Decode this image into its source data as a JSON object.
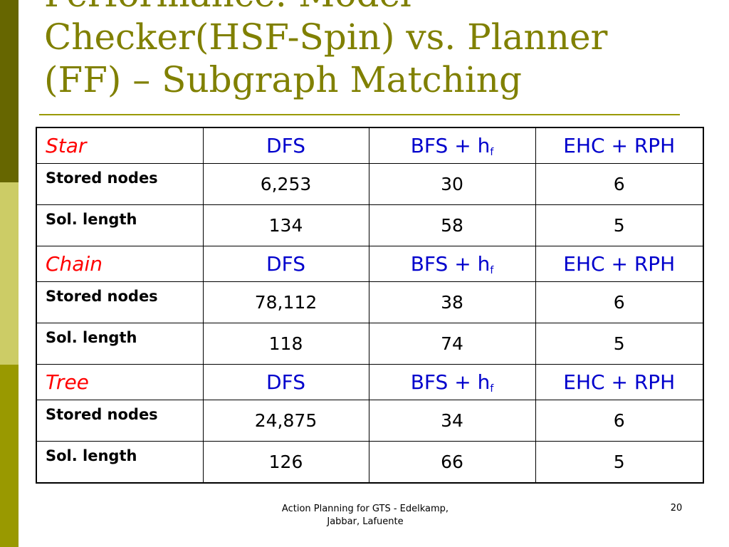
{
  "colors": {
    "sidebar_dark": "#666600",
    "sidebar_light": "#cccc66",
    "sidebar_mid": "#999900",
    "title": "#808000",
    "rule": "#999900",
    "group_label": "#ff0000",
    "method": "#0000cc"
  },
  "slide": {
    "title_lines": [
      "Performance: Model",
      "Checker(HSF-Spin) vs. Planner",
      "(FF) – Subgraph Matching"
    ]
  },
  "table": {
    "groups": [
      {
        "label": "Star",
        "methods": [
          {
            "text": "DFS",
            "sub": ""
          },
          {
            "text": "BFS + h",
            "sub": "f"
          },
          {
            "text": "EHC + RPH",
            "sub": ""
          }
        ],
        "rows": [
          {
            "label": "Stored nodes",
            "values": [
              "6,253",
              "30",
              "6"
            ]
          },
          {
            "label": "Sol. length",
            "values": [
              "134",
              "58",
              "5"
            ]
          }
        ]
      },
      {
        "label": "Chain",
        "methods": [
          {
            "text": "DFS",
            "sub": ""
          },
          {
            "text": "BFS + h",
            "sub": "f"
          },
          {
            "text": "EHC + RPH",
            "sub": ""
          }
        ],
        "rows": [
          {
            "label": "Stored nodes",
            "values": [
              "78,112",
              "38",
              "6"
            ]
          },
          {
            "label": "Sol. length",
            "values": [
              "118",
              "74",
              "5"
            ]
          }
        ]
      },
      {
        "label": "Tree",
        "methods": [
          {
            "text": "DFS",
            "sub": ""
          },
          {
            "text": "BFS + h",
            "sub": "f"
          },
          {
            "text": "EHC + RPH",
            "sub": ""
          }
        ],
        "rows": [
          {
            "label": "Stored nodes",
            "values": [
              "24,875",
              "34",
              "6"
            ]
          },
          {
            "label": "Sol. length",
            "values": [
              "126",
              "66",
              "5"
            ]
          }
        ]
      }
    ]
  },
  "footer": {
    "line1": "Action Planning for GTS - Edelkamp,",
    "line2": "Jabbar, Lafuente",
    "page_number": "20"
  }
}
